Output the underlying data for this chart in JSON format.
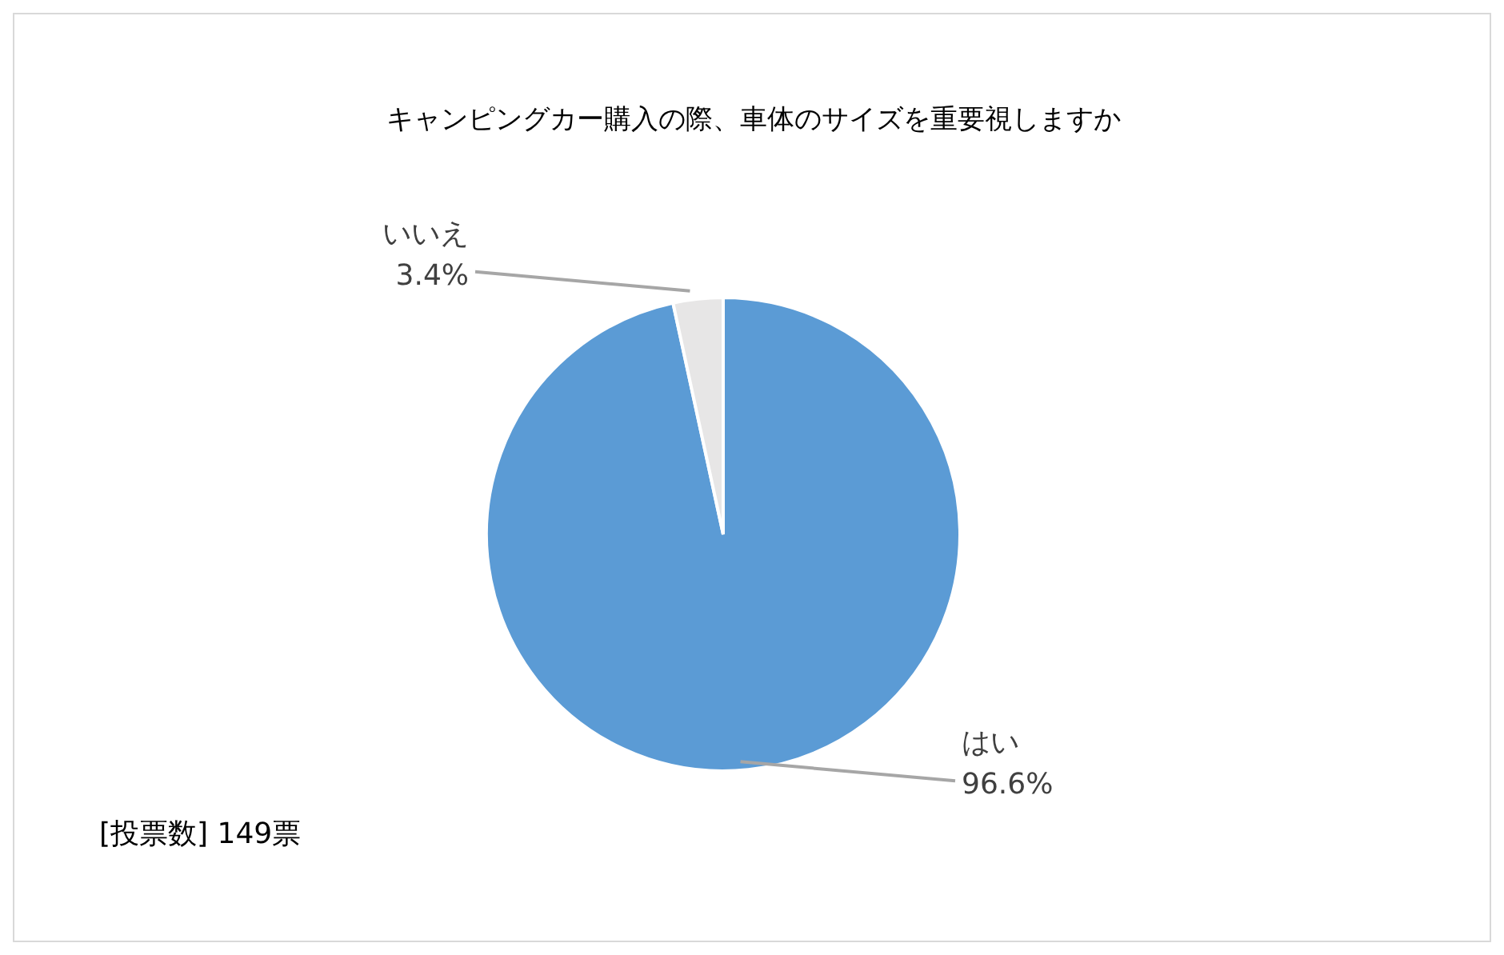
{
  "chart_data": {
    "type": "pie",
    "title": "キャンピングカー購入の際、車体のサイズを重要視しますか",
    "categories": [
      "はい",
      "いいえ"
    ],
    "values": [
      96.6,
      3.4
    ],
    "colors": [
      "#5b9bd5",
      "#e7e6e6"
    ],
    "value_labels": [
      "96.6%",
      "3.4%"
    ],
    "annotations": [
      "[投票数] 149票"
    ]
  }
}
